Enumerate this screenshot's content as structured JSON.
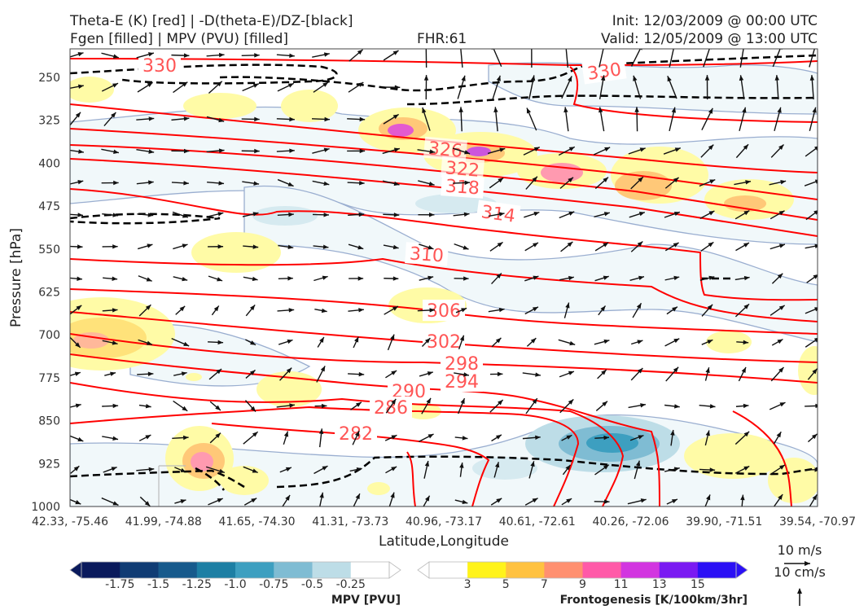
{
  "header": {
    "title_line1": "Theta-E (K) [red] | -D(theta-E)/DZ-[black]",
    "title_line2": "Fgen [filled] | MPV (PVU) [filled]",
    "fhr": "FHR:61",
    "init": "Init: 12/03/2009 @ 00:00 UTC",
    "valid": "Valid: 12/05/2009 @ 13:00 UTC"
  },
  "chart_data": {
    "type": "cross-section",
    "xlabel": "Latitude,Longitude",
    "ylabel": "Pressure [hPa]",
    "x_ticks": [
      "42.33, -75.46",
      "41.99, -74.88",
      "41.65, -74.30",
      "41.31, -73.73",
      "40.96, -73.17",
      "40.61, -72.61",
      "40.26, -72.06",
      "39.90, -71.51",
      "39.54, -70.97"
    ],
    "y_ticks": [
      250,
      325,
      400,
      475,
      550,
      625,
      700,
      775,
      850,
      925,
      1000
    ],
    "ylim": [
      1000,
      200
    ],
    "grid": false,
    "theta_e_contours": [
      {
        "label": "330",
        "level": 330
      },
      {
        "label": "330",
        "level": 330
      },
      {
        "label": "326",
        "level": 326
      },
      {
        "label": "322",
        "level": 322
      },
      {
        "label": "318",
        "level": 318
      },
      {
        "label": "314",
        "level": 314
      },
      {
        "label": "310",
        "level": 310
      },
      {
        "label": "306",
        "level": 306
      },
      {
        "label": "302",
        "level": 302
      },
      {
        "label": "298",
        "level": 298
      },
      {
        "label": "294",
        "level": 294
      },
      {
        "label": "290",
        "level": 290
      },
      {
        "label": "286",
        "level": 286
      },
      {
        "label": "282",
        "level": 282
      }
    ],
    "colors": {
      "theta_e": "#ff0000",
      "theta_e_label": "#ff5555",
      "dthetae_dz": "#000000",
      "mpv_outline": "#9aaed0",
      "wind_vectors": "#111111"
    }
  },
  "mpv_colorbar": {
    "label": "MPV [PVU]",
    "ticks": [
      "-1.75",
      "-1.5",
      "-1.25",
      "-1.0",
      "-0.75",
      "-0.5",
      "-0.25"
    ],
    "colors": [
      "#0a1a5c",
      "#103c74",
      "#175a8c",
      "#1d7fa4",
      "#3d9fc0",
      "#7fbcd3",
      "#bddde7",
      "#ffffff"
    ]
  },
  "fgen_colorbar": {
    "label": "Frontogenesis [K/100km/3hr]",
    "ticks": [
      "3",
      "5",
      "7",
      "9",
      "11",
      "13",
      "15"
    ],
    "colors": [
      "#ffffff",
      "#fff31a",
      "#ffc240",
      "#ff9070",
      "#ff5aa8",
      "#d235e0",
      "#7a1af2",
      "#2b10f5"
    ]
  },
  "vector_key": {
    "horizontal": "10 m/s",
    "vertical": "10 cm/s"
  }
}
